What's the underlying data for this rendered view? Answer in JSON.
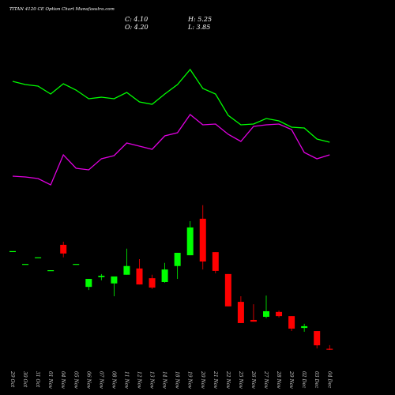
{
  "chart_data": {
    "type": "candlestick",
    "title": "TITAN 4120 CE Option Chart Munafasutra.com",
    "ohlc_header": [
      "C: 4.10",
      "H: 5.25",
      "O: 4.20",
      "L: 3.85"
    ],
    "categories": [
      "29 Oct",
      "30 Oct",
      "31 Oct",
      "01 Nov",
      "04 Nov",
      "05 Nov",
      "06 Nov",
      "07 Nov",
      "08 Nov",
      "11 Nov",
      "12 Nov",
      "13 Nov",
      "14 Nov",
      "18 Nov",
      "19 Nov",
      "20 Nov",
      "21 Nov",
      "22 Nov",
      "25 Nov",
      "26 Nov",
      "27 Nov",
      "28 Nov",
      "29 Nov",
      "02 Dec",
      "03 Dec",
      "04 Dec"
    ],
    "open": [
      32.3,
      28.6,
      30.5,
      26.8,
      34.1,
      28.6,
      22.0,
      24.8,
      23.0,
      25.5,
      27.3,
      24.5,
      23.4,
      28.0,
      31.1,
      41.6,
      32.0,
      25.7,
      17.7,
      12.5,
      13.4,
      14.8,
      13.6,
      10.2,
      9.3,
      4.2
    ],
    "high": [
      32.3,
      28.6,
      30.5,
      26.8,
      35.0,
      28.6,
      24.3,
      25.7,
      25.0,
      33.0,
      30.0,
      25.5,
      28.9,
      31.8,
      40.9,
      45.5,
      32.0,
      25.7,
      19.3,
      17.0,
      19.5,
      15.2,
      13.6,
      11.4,
      9.3,
      5.25
    ],
    "low": [
      32.3,
      28.6,
      30.5,
      26.8,
      30.5,
      28.6,
      21.1,
      23.9,
      19.3,
      25.5,
      22.7,
      21.4,
      23.2,
      24.3,
      31.1,
      27.0,
      25.9,
      16.4,
      11.6,
      12.0,
      13.0,
      13.2,
      9.3,
      9.1,
      4.3,
      3.85
    ],
    "close": [
      32.3,
      28.6,
      30.5,
      26.8,
      31.6,
      28.6,
      24.3,
      25.2,
      25.0,
      28.0,
      22.7,
      21.8,
      27.0,
      31.8,
      39.1,
      29.3,
      26.6,
      16.4,
      11.6,
      12.0,
      15.0,
      13.6,
      10.0,
      10.7,
      5.2,
      4.1
    ],
    "ylim": [
      0,
      104.5
    ],
    "up_color": "#00ff00",
    "down_color": "#ff0000",
    "y2lim": [
      0,
      100
    ],
    "series": [
      {
        "color": "#00ff00",
        "axis": "y2",
        "values": [
          78.5,
          76.5,
          75.5,
          70.5,
          77,
          73,
          67.5,
          68.5,
          67.5,
          71.5,
          65.5,
          64,
          70.5,
          76.5,
          86,
          74,
          70.5,
          57,
          51,
          51.5,
          55,
          53.5,
          49.5,
          49,
          42,
          40
        ]
      },
      {
        "color": "#e000e0",
        "axis": "y2",
        "values": [
          18.5,
          18,
          17,
          13,
          32,
          23.5,
          22.5,
          29.5,
          31.5,
          39.5,
          37.5,
          35.5,
          44,
          46,
          57.5,
          51,
          51.5,
          45,
          40.5,
          50,
          51,
          51.5,
          48,
          33.5,
          29.5,
          32
        ]
      }
    ]
  }
}
